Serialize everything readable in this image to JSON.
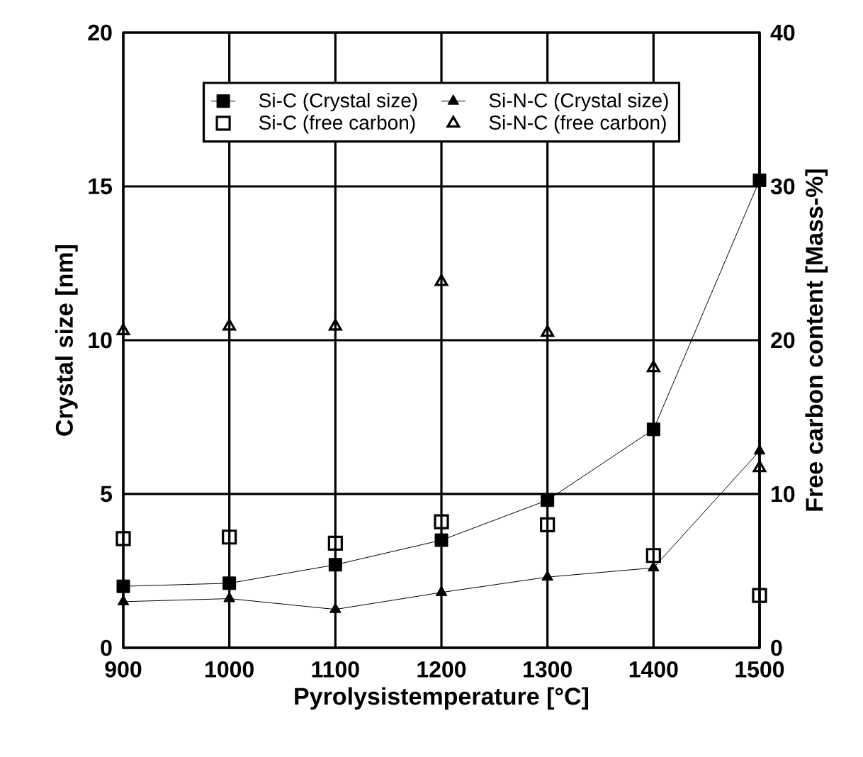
{
  "chart_data": {
    "type": "line",
    "xlabel": "Pyrolysistemperature [°C]",
    "ylabel": "Crystal size [nm]",
    "y2label": "Free carbon content [Mass-%]",
    "xlim": [
      900,
      1500
    ],
    "xticks": [
      900,
      1000,
      1100,
      1200,
      1300,
      1400,
      1500
    ],
    "ylim": [
      0,
      20
    ],
    "yticks": [
      0,
      5,
      10,
      15,
      20
    ],
    "y2lim": [
      0,
      40
    ],
    "y2ticks": [
      0,
      10,
      20,
      30,
      40
    ],
    "grid": true,
    "legend": "top",
    "line_style": "solid",
    "series": [
      {
        "name": "Si-C (Crystal size)",
        "marker": "square",
        "color": "#000000",
        "x": [
          900,
          1000,
          1100,
          1200,
          1300,
          1400,
          1500
        ],
        "values": [
          2.0,
          2.1,
          2.7,
          3.5,
          4.8,
          7.1,
          15.2
        ]
      },
      {
        "name": "Si-N-C (Crystal size)",
        "marker": "triangle",
        "color": "#000000",
        "x": [
          900,
          1000,
          1100,
          1200,
          1300,
          1400,
          1500
        ],
        "values": [
          1.5,
          1.6,
          1.25,
          1.8,
          2.3,
          2.6,
          6.4
        ]
      },
      {
        "name": "Si-C (free carbon)",
        "type": "scatter",
        "marker": "square",
        "color": "#000000",
        "axis": "y2",
        "x": [
          900,
          1000,
          1100,
          1200,
          1300,
          1400,
          1500
        ],
        "values": [
          7.1,
          7.2,
          6.8,
          8.2,
          8.0,
          6.0,
          3.4
        ]
      },
      {
        "name": "Si-N-C (free carbon)",
        "type": "scatter",
        "marker": "triangle",
        "color": "#000000",
        "axis": "y2",
        "x": [
          900,
          1000,
          1100,
          1200,
          1300,
          1400,
          1500
        ],
        "values": [
          20.6,
          20.9,
          20.9,
          23.8,
          20.5,
          18.2,
          11.7
        ]
      }
    ]
  }
}
